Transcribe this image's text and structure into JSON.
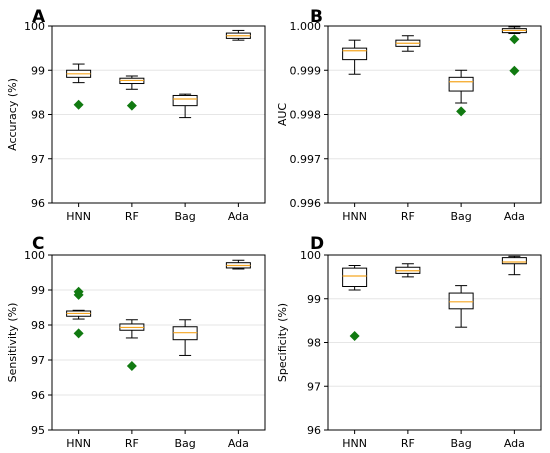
{
  "chart_data": [
    {
      "type": "box",
      "panel_label": "A",
      "ylabel": "Accuracy (%)",
      "categories": [
        "HNN",
        "RF",
        "Bag",
        "Ada"
      ],
      "ylim": [
        96,
        100
      ],
      "yticks": [
        "96",
        "97",
        "98",
        "99",
        "100"
      ],
      "ytick_values": [
        96,
        97,
        98,
        99,
        100
      ],
      "grid": "horizontal",
      "boxes": [
        {
          "whislo": 98.72,
          "q1": 98.84,
          "med": 98.92,
          "q3": 99.0,
          "whishi": 99.14,
          "fliers": [
            98.22
          ]
        },
        {
          "whislo": 98.57,
          "q1": 98.7,
          "med": 98.77,
          "q3": 98.82,
          "whishi": 98.87,
          "fliers": [
            98.2
          ]
        },
        {
          "whislo": 97.93,
          "q1": 98.2,
          "med": 98.35,
          "q3": 98.43,
          "whishi": 98.46,
          "fliers": []
        },
        {
          "whislo": 99.68,
          "q1": 99.72,
          "med": 99.78,
          "q3": 99.84,
          "whishi": 99.9,
          "fliers": []
        }
      ]
    },
    {
      "type": "box",
      "panel_label": "B",
      "ylabel": "AUC",
      "categories": [
        "HNN",
        "RF",
        "Bag",
        "Ada"
      ],
      "ylim": [
        0.996,
        1.0
      ],
      "yticks": [
        "0.996",
        "0.997",
        "0.998",
        "0.999",
        "1.000"
      ],
      "ytick_values": [
        0.996,
        0.997,
        0.998,
        0.999,
        1.0
      ],
      "grid": "horizontal",
      "boxes": [
        {
          "whislo": 0.99891,
          "q1": 0.99924,
          "med": 0.99944,
          "q3": 0.9995,
          "whishi": 0.99968,
          "fliers": []
        },
        {
          "whislo": 0.99943,
          "q1": 0.99954,
          "med": 0.99961,
          "q3": 0.99968,
          "whishi": 0.99978,
          "fliers": []
        },
        {
          "whislo": 0.99826,
          "q1": 0.99853,
          "med": 0.99874,
          "q3": 0.99884,
          "whishi": 0.999,
          "fliers": [
            0.99807
          ]
        },
        {
          "whislo": 0.99983,
          "q1": 0.99985,
          "med": 0.9999,
          "q3": 0.99994,
          "whishi": 0.99998,
          "fliers": [
            0.9997,
            0.99899
          ]
        }
      ]
    },
    {
      "type": "box",
      "panel_label": "C",
      "ylabel": "Sensitivity (%)",
      "categories": [
        "HNN",
        "RF",
        "Bag",
        "Ada"
      ],
      "ylim": [
        95,
        100
      ],
      "yticks": [
        "95",
        "96",
        "97",
        "98",
        "99",
        "100"
      ],
      "ytick_values": [
        95,
        96,
        97,
        98,
        99,
        100
      ],
      "grid": "horizontal",
      "boxes": [
        {
          "whislo": 98.17,
          "q1": 98.25,
          "med": 98.33,
          "q3": 98.4,
          "whishi": 98.42,
          "fliers": [
            98.95,
            98.86,
            97.76
          ]
        },
        {
          "whislo": 97.63,
          "q1": 97.85,
          "med": 97.93,
          "q3": 98.03,
          "whishi": 98.15,
          "fliers": [
            96.83
          ]
        },
        {
          "whislo": 97.13,
          "q1": 97.58,
          "med": 97.78,
          "q3": 97.95,
          "whishi": 98.15,
          "fliers": []
        },
        {
          "whislo": 99.6,
          "q1": 99.63,
          "med": 99.7,
          "q3": 99.78,
          "whishi": 99.85,
          "fliers": []
        }
      ]
    },
    {
      "type": "box",
      "panel_label": "D",
      "ylabel": "Specificity (%)",
      "categories": [
        "HNN",
        "RF",
        "Bag",
        "Ada"
      ],
      "ylim": [
        96,
        100
      ],
      "yticks": [
        "96",
        "97",
        "98",
        "99",
        "100"
      ],
      "ytick_values": [
        96,
        97,
        98,
        99,
        100
      ],
      "grid": "horizontal",
      "boxes": [
        {
          "whislo": 99.2,
          "q1": 99.28,
          "med": 99.52,
          "q3": 99.7,
          "whishi": 99.76,
          "fliers": [
            98.15
          ]
        },
        {
          "whislo": 99.5,
          "q1": 99.58,
          "med": 99.64,
          "q3": 99.72,
          "whishi": 99.8,
          "fliers": []
        },
        {
          "whislo": 98.35,
          "q1": 98.77,
          "med": 98.93,
          "q3": 99.13,
          "whishi": 99.3,
          "fliers": []
        },
        {
          "whislo": 99.55,
          "q1": 99.8,
          "med": 99.84,
          "q3": 99.94,
          "whishi": 99.97,
          "fliers": []
        }
      ]
    }
  ],
  "colors": {
    "box_edge": "#000000",
    "box_fill": "#ffffff",
    "median": "#f5a623",
    "flier": "#117a11",
    "grid": "#e6e6e6"
  }
}
